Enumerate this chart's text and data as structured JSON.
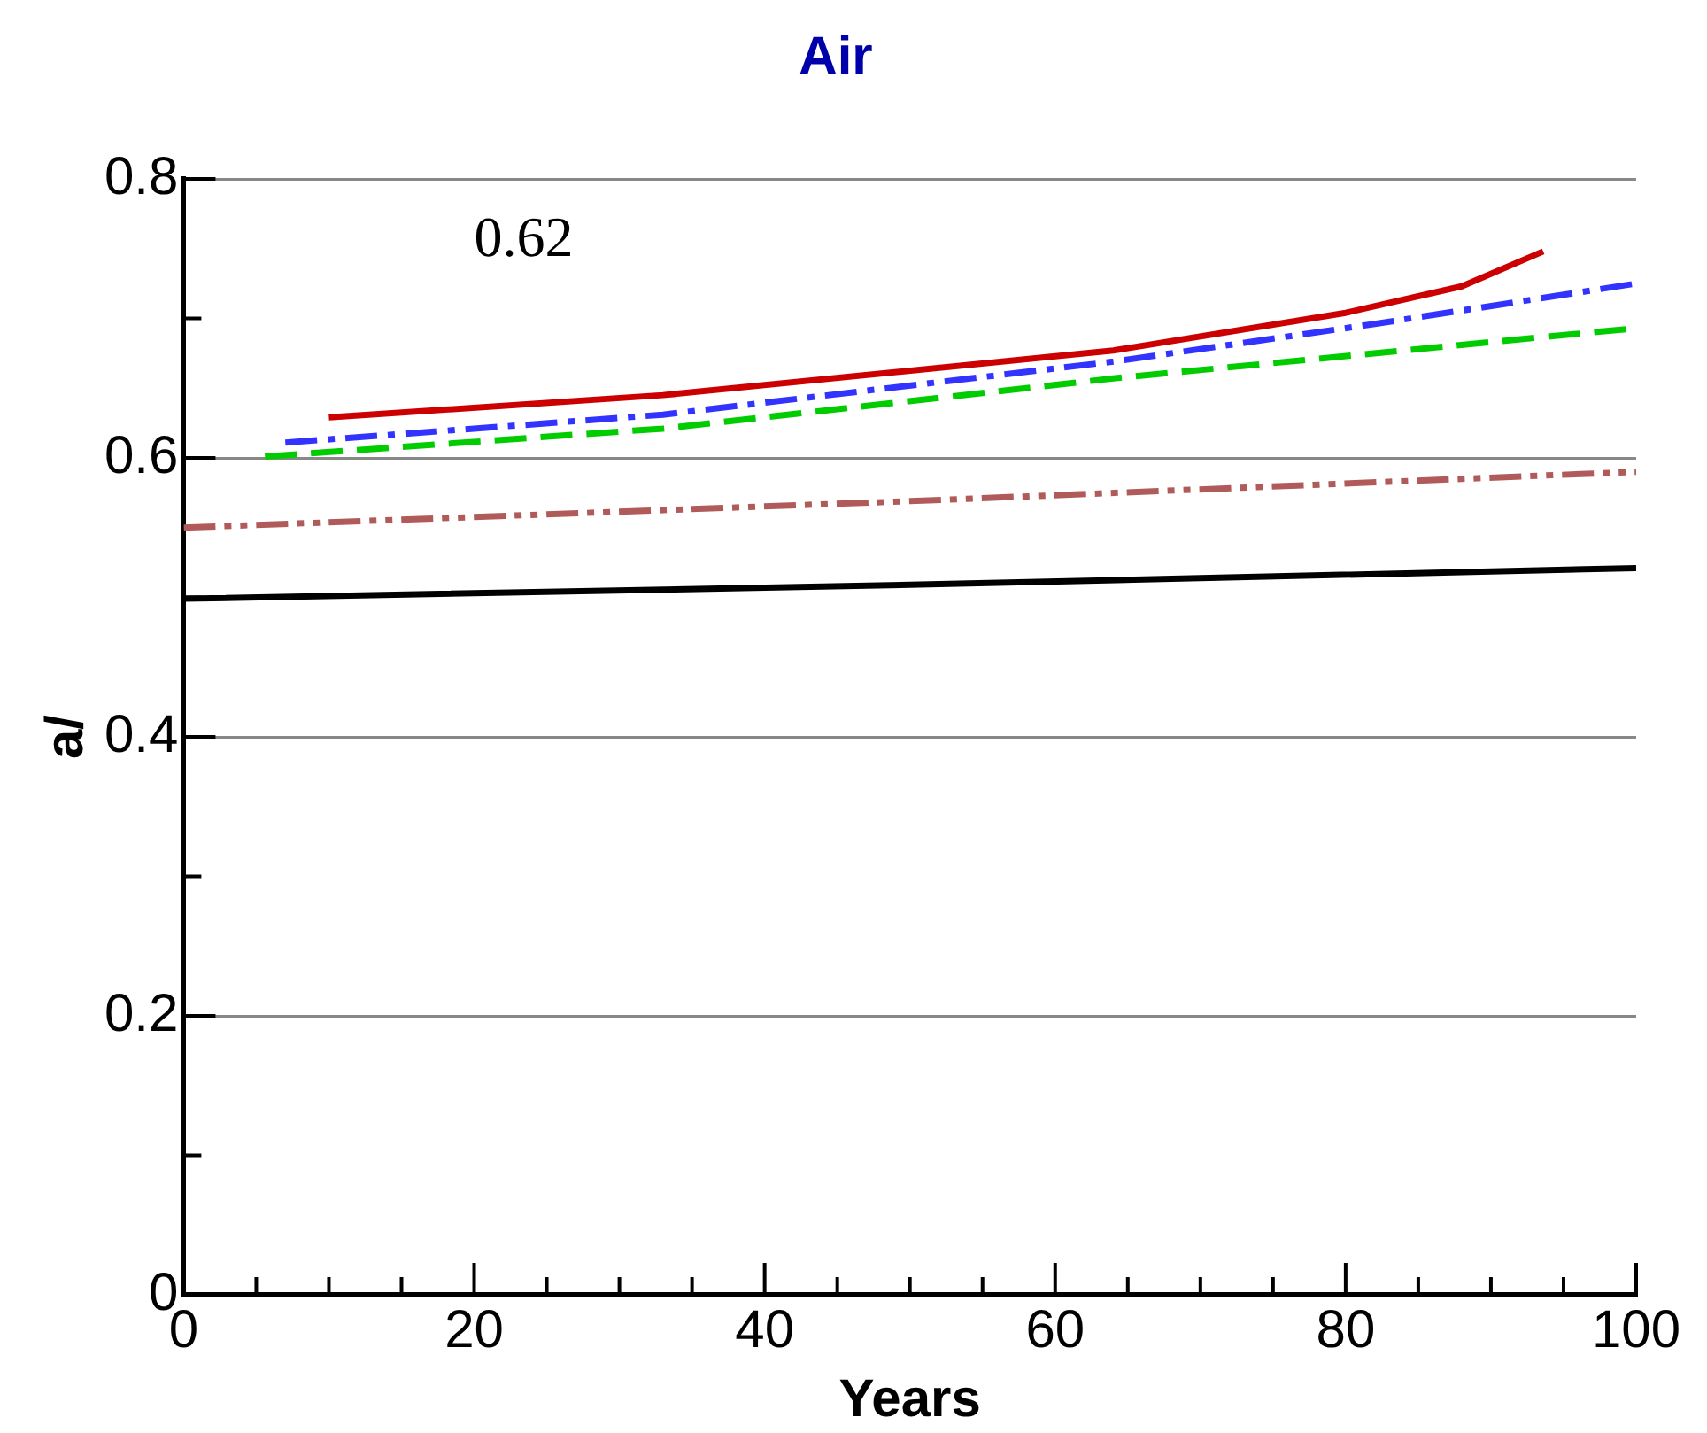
{
  "chart_data": {
    "type": "line",
    "title": "Air",
    "xlabel": "Years",
    "ylabel": "a/",
    "annotations": [
      "0.62"
    ],
    "xlim": [
      0,
      100
    ],
    "ylim": [
      0,
      0.8
    ],
    "xticks": [
      0,
      {
        "value": 5,
        "label": null
      },
      {
        "value": 10,
        "label": null
      },
      {
        "value": 15,
        "label": null
      },
      20,
      {
        "value": 25,
        "label": null
      },
      {
        "value": 30,
        "label": null
      },
      {
        "value": 35,
        "label": null
      },
      40,
      {
        "value": 45,
        "label": null
      },
      {
        "value": 50,
        "label": null
      },
      {
        "value": 55,
        "label": null
      },
      60,
      {
        "value": 65,
        "label": null
      },
      {
        "value": 70,
        "label": null
      },
      {
        "value": 75,
        "label": null
      },
      80,
      {
        "value": 85,
        "label": null
      },
      {
        "value": 90,
        "label": null
      },
      {
        "value": 95,
        "label": null
      },
      100
    ],
    "yticks": [
      0,
      {
        "value": 0.1,
        "label": null
      },
      0.2,
      {
        "value": 0.3,
        "label": null
      },
      0.4,
      {
        "value": 0.5,
        "label": null
      },
      0.6,
      {
        "value": 0.7,
        "label": null
      },
      0.8
    ],
    "grid": "y",
    "marker": "none",
    "series": [
      {
        "color": "#cc0000",
        "line_style": "solid",
        "x": [
          10,
          33,
          64,
          80,
          88,
          93.6
        ],
        "values": [
          0.629,
          0.645,
          0.677,
          0.704,
          0.723,
          0.748
        ]
      },
      {
        "color": "#3333ff",
        "line_style": "dashdot",
        "x": [
          7,
          33,
          64,
          82,
          100
        ],
        "values": [
          0.611,
          0.631,
          0.669,
          0.696,
          0.725
        ]
      },
      {
        "color": "#00cc00",
        "line_style": "dashed",
        "x": [
          5.6,
          33,
          64,
          100
        ],
        "values": [
          0.601,
          0.621,
          0.657,
          0.693
        ]
      },
      {
        "color": "#b05a5a",
        "line_style": "dashdotdot",
        "x": [
          0,
          50,
          100
        ],
        "values": [
          0.55,
          0.569,
          0.59
        ]
      },
      {
        "color": "#000000",
        "line_style": "solid",
        "x": [
          0,
          50,
          100
        ],
        "values": [
          0.499,
          0.509,
          0.521
        ]
      }
    ]
  }
}
